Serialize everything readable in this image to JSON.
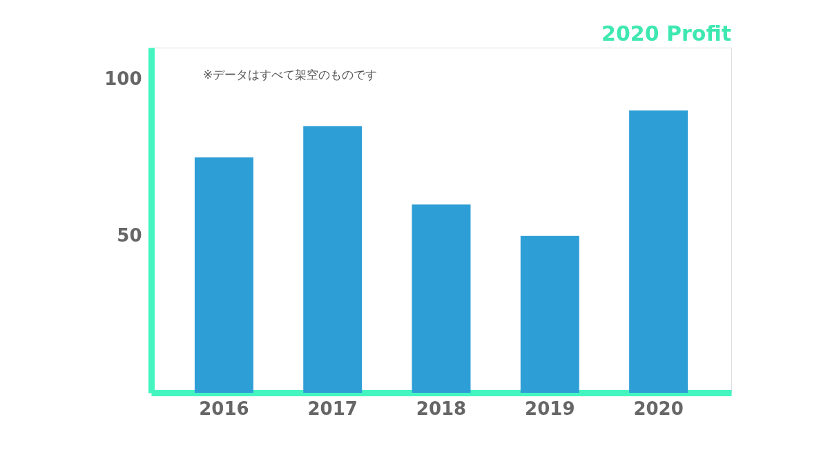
{
  "chart_data": {
    "type": "bar",
    "title": "2020 Profit",
    "categories": [
      "2016",
      "2017",
      "2018",
      "2019",
      "2020"
    ],
    "values": [
      75,
      85,
      60,
      50,
      90
    ],
    "color": "#2e9ed6",
    "ylim": [
      0,
      110
    ],
    "yticks": [
      50,
      100
    ],
    "grid": false,
    "annotations": [
      "※データはすべて架空のものです"
    ]
  }
}
